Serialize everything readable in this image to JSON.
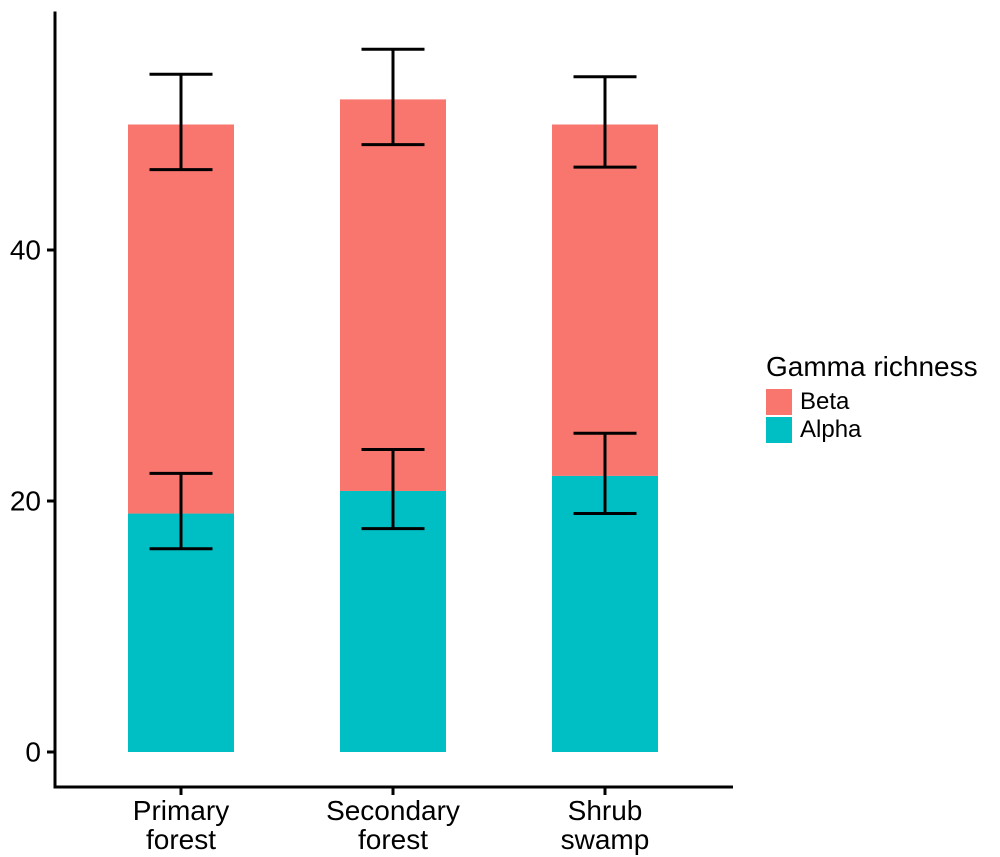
{
  "figure": {
    "background": "#FFFFFF",
    "axis_color": "#000000",
    "text_color": "#000000"
  },
  "chart_data": {
    "type": "bar",
    "stacked": true,
    "orientation": "vertical",
    "title": "",
    "xlabel": "",
    "ylabel": "",
    "categories": [
      {
        "label_lines": [
          "Primary",
          "forest"
        ]
      },
      {
        "label_lines": [
          "Secondary",
          "forest"
        ]
      },
      {
        "label_lines": [
          "Shrub",
          "swamp"
        ]
      }
    ],
    "series": [
      {
        "name": "Alpha",
        "color": "#00BFC4",
        "values": [
          19.0,
          20.8,
          22.0
        ]
      },
      {
        "name": "Beta",
        "color": "#F8766D",
        "values": [
          31.0,
          31.2,
          28.0
        ]
      }
    ],
    "stack_totals": [
      50.0,
      52.0,
      50.0
    ],
    "error_bars": [
      {
        "at": "alpha-segment-top",
        "center": [
          19.0,
          20.8,
          22.0
        ],
        "low": [
          16.2,
          17.8,
          19.0
        ],
        "high": [
          22.2,
          24.1,
          25.4
        ]
      },
      {
        "at": "stack-top",
        "center": [
          50.0,
          52.0,
          50.0
        ],
        "low": [
          46.4,
          48.4,
          46.6
        ],
        "high": [
          54.0,
          56.0,
          53.8
        ]
      }
    ],
    "y_axis": {
      "tick_values": [
        0,
        20,
        40
      ],
      "tick_labels": [
        "0",
        "20",
        "40"
      ],
      "range": [
        -2.8,
        58.9
      ]
    },
    "grid": false,
    "legend": {
      "title": "Gamma richness",
      "position": "right",
      "entries": [
        {
          "label": "Beta",
          "color": "#F8766D"
        },
        {
          "label": "Alpha",
          "color": "#00BFC4"
        }
      ]
    }
  }
}
